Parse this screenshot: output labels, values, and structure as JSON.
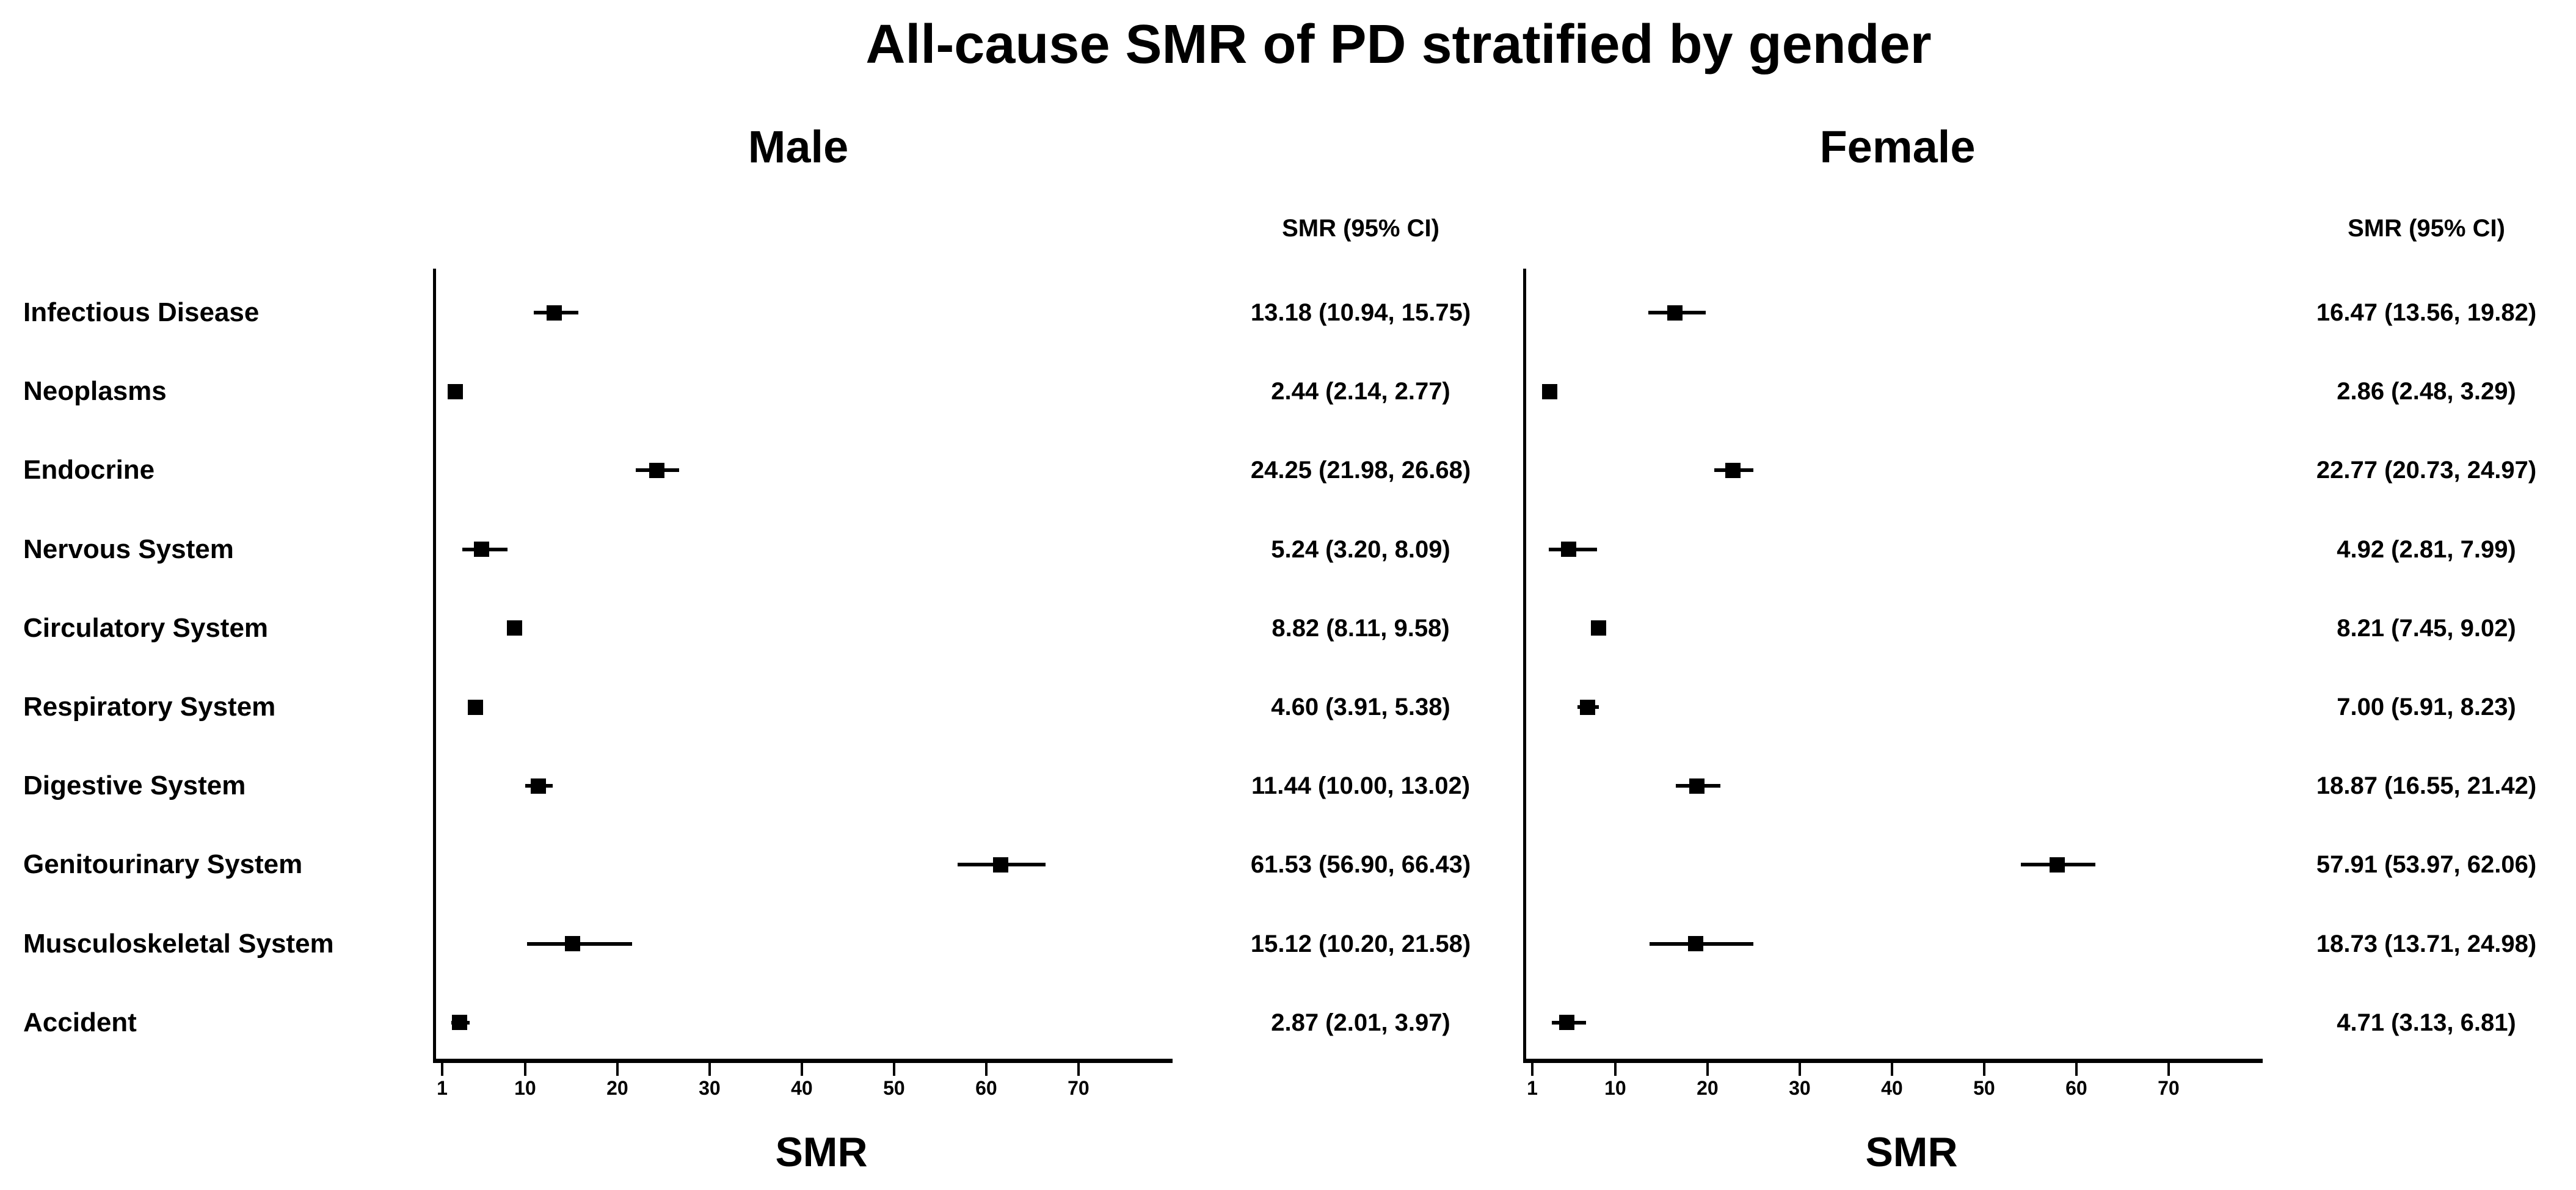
{
  "title": "All-cause SMR of PD stratified by gender",
  "categories": [
    "Infectious Disease",
    "Neoplasms",
    "Endocrine",
    "Nervous System",
    "Circulatory System",
    "Respiratory System",
    "Digestive System",
    "Genitourinary System",
    "Musculoskeletal System",
    "Accident"
  ],
  "colors": {
    "foreground": "#000000",
    "background": "#ffffff"
  },
  "chart_data": [
    {
      "type": "scatter",
      "variant": "forest-plot",
      "title": "Male",
      "col_header": "SMR (95% CI)",
      "xlabel": "SMR",
      "xticks": [
        1,
        10,
        20,
        30,
        40,
        50,
        60,
        70
      ],
      "xlim": [
        1,
        80
      ],
      "grid": false,
      "categories": [
        "Infectious Disease",
        "Neoplasms",
        "Endocrine",
        "Nervous System",
        "Circulatory System",
        "Respiratory System",
        "Digestive System",
        "Genitourinary System",
        "Musculoskeletal System",
        "Accident"
      ],
      "series": [
        {
          "name": "SMR",
          "values": [
            13.18,
            2.44,
            24.25,
            5.24,
            8.82,
            4.6,
            11.44,
            61.53,
            15.12,
            2.87
          ]
        },
        {
          "name": "CI_lower",
          "values": [
            10.94,
            2.14,
            21.98,
            3.2,
            8.11,
            3.91,
            10.0,
            56.9,
            10.2,
            2.01
          ]
        },
        {
          "name": "CI_upper",
          "values": [
            15.75,
            2.77,
            26.68,
            8.09,
            9.58,
            5.38,
            13.02,
            66.43,
            21.58,
            3.97
          ]
        }
      ],
      "value_labels": [
        "13.18 (10.94, 15.75)",
        "2.44 (2.14, 2.77)",
        "24.25 (21.98, 26.68)",
        "5.24 (3.20, 8.09)",
        "8.82 (8.11, 9.58)",
        "4.60 (3.91, 5.38)",
        "11.44 (10.00, 13.02)",
        "61.53 (56.90, 66.43)",
        "15.12 (10.20, 21.58)",
        "2.87 (2.01, 3.97)"
      ]
    },
    {
      "type": "scatter",
      "variant": "forest-plot",
      "title": "Female",
      "col_header": "SMR (95% CI)",
      "xlabel": "SMR",
      "xticks": [
        1,
        10,
        20,
        30,
        40,
        50,
        60,
        70
      ],
      "xlim": [
        1,
        80
      ],
      "grid": false,
      "categories": [
        "Infectious Disease",
        "Neoplasms",
        "Endocrine",
        "Nervous System",
        "Circulatory System",
        "Respiratory System",
        "Digestive System",
        "Genitourinary System",
        "Musculoskeletal System",
        "Accident"
      ],
      "series": [
        {
          "name": "SMR",
          "values": [
            16.47,
            2.86,
            22.77,
            4.92,
            8.21,
            7.0,
            18.87,
            57.91,
            18.73,
            4.71
          ]
        },
        {
          "name": "CI_lower",
          "values": [
            13.56,
            2.48,
            20.73,
            2.81,
            7.45,
            5.91,
            16.55,
            53.97,
            13.71,
            3.13
          ]
        },
        {
          "name": "CI_upper",
          "values": [
            19.82,
            3.29,
            24.97,
            7.99,
            9.02,
            8.23,
            21.42,
            62.06,
            24.98,
            6.81
          ]
        }
      ],
      "value_labels": [
        "16.47 (13.56, 19.82)",
        "2.86 (2.48, 3.29)",
        "22.77 (20.73, 24.97)",
        "4.92 (2.81, 7.99)",
        "8.21 (7.45, 9.02)",
        "7.00 (5.91, 8.23)",
        "18.87 (16.55, 21.42)",
        "57.91 (53.97, 62.06)",
        "18.73 (13.71, 24.98)",
        "4.71 (3.13, 6.81)"
      ]
    }
  ]
}
